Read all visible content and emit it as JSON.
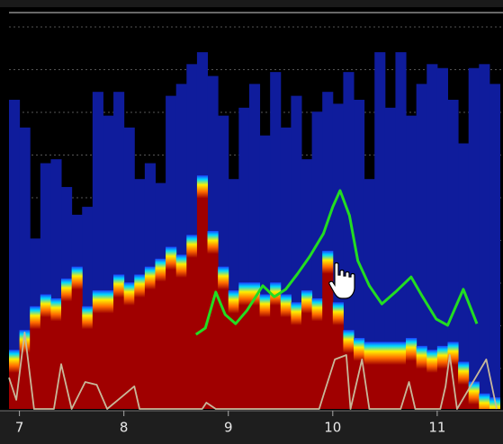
{
  "chart_data": {
    "type": "bar",
    "xlim": [
      6.9,
      11.63
    ],
    "ylim": [
      0,
      100
    ],
    "xticks": [
      7,
      8,
      9,
      10,
      11
    ],
    "grid": true,
    "series": [
      {
        "type": "bar",
        "color": "#0f1c9c",
        "x": [
          6.95,
          7.05,
          7.15,
          7.25,
          7.35,
          7.45,
          7.55,
          7.65,
          7.75,
          7.85,
          7.95,
          8.05,
          8.15,
          8.25,
          8.35,
          8.45,
          8.55,
          8.65,
          8.75,
          8.85,
          8.95,
          9.05,
          9.15,
          9.25,
          9.35,
          9.45,
          9.55,
          9.65,
          9.75,
          9.85,
          9.95,
          10.05,
          10.15,
          10.25,
          10.35,
          10.45,
          10.55,
          10.65,
          10.75,
          10.85,
          10.95,
          11.05,
          11.15,
          11.25,
          11.35,
          11.45,
          11.55
        ],
        "values": [
          78,
          71,
          43,
          62,
          63,
          56,
          49,
          51,
          80,
          74,
          80,
          71,
          58,
          62,
          57,
          79,
          82,
          87,
          90,
          84,
          74,
          58,
          76,
          82,
          69,
          85,
          71,
          79,
          63,
          75,
          80,
          77,
          85,
          78,
          58,
          90,
          76,
          90,
          74,
          82,
          87,
          86,
          78,
          67,
          86,
          87,
          82
        ]
      },
      {
        "type": "area",
        "color": "#a00000",
        "x": [
          6.95,
          7.05,
          7.15,
          7.25,
          7.35,
          7.45,
          7.55,
          7.65,
          7.75,
          7.85,
          7.95,
          8.05,
          8.15,
          8.25,
          8.35,
          8.45,
          8.55,
          8.65,
          8.75,
          8.85,
          8.95,
          9.05,
          9.15,
          9.25,
          9.35,
          9.45,
          9.55,
          9.65,
          9.75,
          9.85,
          9.95,
          10.05,
          10.15,
          10.25,
          10.35,
          10.45,
          10.55,
          10.65,
          10.75,
          10.85,
          10.95,
          11.05,
          11.15,
          11.25,
          11.35,
          11.45,
          11.55
        ],
        "values": [
          14,
          19,
          25,
          28,
          27,
          32,
          35,
          25,
          29,
          29,
          33,
          31,
          33,
          35,
          37,
          40,
          38,
          43,
          58,
          44,
          35,
          29,
          31,
          31,
          28,
          31,
          28,
          26,
          29,
          27,
          39,
          26,
          19,
          17,
          16,
          16,
          16,
          16,
          17,
          15,
          14,
          15,
          16,
          11,
          6,
          3,
          2
        ]
      },
      {
        "type": "line",
        "color": "#22dd22",
        "x": [
          8.69,
          8.78,
          8.88,
          8.97,
          9.07,
          9.18,
          9.33,
          9.44,
          9.55,
          9.66,
          9.78,
          9.91,
          10.0,
          10.07,
          10.16,
          10.24,
          10.35,
          10.47,
          10.6,
          10.75,
          10.86,
          10.99,
          11.1,
          11.25,
          11.38
        ],
        "values": [
          18.8,
          20.4,
          29.5,
          23.8,
          21.5,
          24.9,
          31.1,
          28.3,
          30.2,
          34.0,
          38.5,
          44.2,
          51.0,
          55.1,
          48.8,
          37.4,
          31.1,
          26.5,
          29.5,
          33.3,
          28.3,
          22.7,
          21.1,
          30.2,
          21.5
        ]
      },
      {
        "type": "line",
        "color": "#c8b89a",
        "x": [
          6.9,
          6.97,
          7.05,
          7.14,
          7.33,
          7.4,
          7.5,
          7.63,
          7.74,
          7.84,
          8.1,
          8.15,
          8.75,
          8.79,
          8.88,
          9.87,
          9.91,
          10.02,
          10.13,
          10.17,
          10.28,
          10.35,
          10.65,
          10.73,
          10.79,
          11.03,
          11.08,
          11.12,
          11.19,
          11.47,
          11.57
        ],
        "values": [
          7.9,
          2.3,
          19.3,
          0,
          0,
          11.3,
          0,
          6.8,
          6.1,
          0,
          5.7,
          0,
          0,
          1.6,
          0,
          0,
          3.4,
          12.5,
          13.6,
          0,
          12.5,
          0,
          0,
          6.8,
          0,
          0,
          5.7,
          13.6,
          0,
          12.5,
          0
        ]
      }
    ]
  }
}
